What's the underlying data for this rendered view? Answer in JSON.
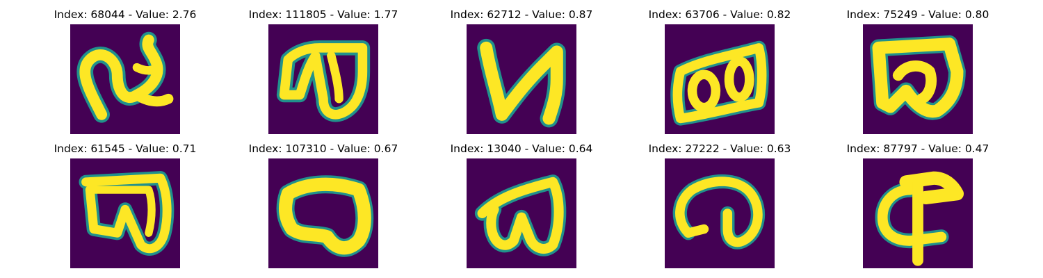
{
  "colors": {
    "background": "#440154",
    "stroke": "#fde725",
    "edge_green": "#21918c",
    "edge_teal": "#35b779"
  },
  "panels": [
    {
      "title": "Index: 68044 - Value: 2.76",
      "glyph": "glyph-1"
    },
    {
      "title": "Index: 111805 - Value: 1.77",
      "glyph": "glyph-2"
    },
    {
      "title": "Index: 62712 - Value: 0.87",
      "glyph": "glyph-3"
    },
    {
      "title": "Index: 63706 - Value: 0.82",
      "glyph": "glyph-4"
    },
    {
      "title": "Index: 75249 - Value: 0.80",
      "glyph": "glyph-5"
    },
    {
      "title": "Index: 61545 - Value: 0.71",
      "glyph": "glyph-6"
    },
    {
      "title": "Index: 107310 - Value: 0.67",
      "glyph": "glyph-7"
    },
    {
      "title": "Index: 13040 - Value: 0.64",
      "glyph": "glyph-8"
    },
    {
      "title": "Index: 27222 - Value: 0.63",
      "glyph": "glyph-9"
    },
    {
      "title": "Index: 87797 - Value: 0.47",
      "glyph": "glyph-10"
    }
  ]
}
